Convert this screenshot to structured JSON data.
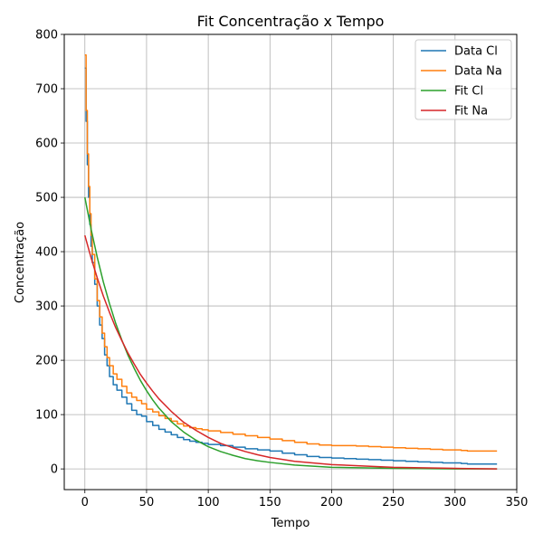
{
  "chart_data": {
    "type": "line",
    "title": "Fit Concentração x Tempo",
    "xlabel": "Tempo",
    "ylabel": "Concentração",
    "xlim": [
      -16.7,
      350
    ],
    "ylim": [
      -38.1,
      800
    ],
    "xticks": [
      0,
      50,
      100,
      150,
      200,
      250,
      300,
      350
    ],
    "yticks": [
      0,
      100,
      200,
      300,
      400,
      500,
      600,
      700,
      800
    ],
    "grid": true,
    "legend_position": "top-right",
    "series": [
      {
        "name": "Data Cl",
        "color": "#1f77b4",
        "style": "step",
        "x": [
          0,
          1,
          2,
          3,
          4,
          5,
          6,
          8,
          10,
          12,
          14,
          16,
          18,
          20,
          23,
          26,
          30,
          34,
          38,
          42,
          46,
          50,
          55,
          60,
          65,
          70,
          75,
          80,
          85,
          90,
          95,
          100,
          110,
          120,
          130,
          140,
          150,
          160,
          170,
          180,
          190,
          200,
          210,
          220,
          230,
          240,
          250,
          260,
          270,
          280,
          290,
          300,
          305,
          310,
          320,
          334
        ],
        "y": [
          738,
          640,
          560,
          500,
          450,
          410,
          380,
          340,
          300,
          265,
          240,
          210,
          190,
          170,
          155,
          145,
          132,
          120,
          108,
          100,
          97,
          87,
          80,
          73,
          68,
          63,
          58,
          54,
          51,
          49,
          47,
          45,
          43,
          40,
          37,
          35,
          33,
          29,
          26,
          23,
          21,
          20,
          19,
          18,
          17,
          16,
          15,
          14,
          13,
          12,
          11,
          11,
          10,
          9,
          9,
          9
        ]
      },
      {
        "name": "Data Na",
        "color": "#ff7f0e",
        "style": "step",
        "x": [
          0,
          1,
          2,
          3,
          4,
          5,
          6,
          8,
          10,
          12,
          14,
          16,
          18,
          20,
          23,
          26,
          30,
          34,
          38,
          42,
          46,
          50,
          55,
          60,
          65,
          70,
          75,
          80,
          85,
          90,
          95,
          100,
          110,
          120,
          130,
          140,
          150,
          160,
          170,
          180,
          190,
          200,
          210,
          220,
          230,
          240,
          250,
          260,
          270,
          280,
          290,
          300,
          305,
          310,
          320,
          334
        ],
        "y": [
          762,
          660,
          580,
          520,
          470,
          430,
          395,
          350,
          310,
          280,
          250,
          225,
          205,
          190,
          175,
          165,
          152,
          140,
          132,
          126,
          120,
          110,
          105,
          98,
          93,
          88,
          83,
          79,
          76,
          74,
          72,
          70,
          67,
          64,
          61,
          58,
          55,
          52,
          49,
          46,
          44,
          43,
          43,
          42,
          41,
          40,
          39,
          38,
          37,
          36,
          35,
          35,
          34,
          33,
          33,
          33
        ]
      },
      {
        "name": "Fit Cl",
        "color": "#2ca02c",
        "style": "line",
        "x": [
          0,
          5,
          10,
          15,
          20,
          25,
          30,
          35,
          40,
          45,
          50,
          55,
          60,
          70,
          80,
          90,
          100,
          110,
          120,
          130,
          140,
          150,
          170,
          200,
          250,
          300,
          334
        ],
        "y": [
          500,
          442,
          390,
          344,
          304,
          268,
          237,
          209,
          185,
          163,
          144,
          127,
          112,
          87,
          68,
          53,
          41,
          32,
          25,
          19,
          15,
          12,
          7,
          3,
          1,
          0,
          0
        ]
      },
      {
        "name": "Fit Na",
        "color": "#d62728",
        "style": "line",
        "x": [
          0,
          5,
          10,
          15,
          20,
          25,
          30,
          35,
          40,
          45,
          50,
          55,
          60,
          70,
          80,
          90,
          100,
          110,
          120,
          130,
          140,
          150,
          170,
          200,
          250,
          300,
          334
        ],
        "y": [
          430,
          389,
          352,
          318,
          288,
          260,
          236,
          213,
          193,
          174,
          158,
          143,
          129,
          106,
          86,
          71,
          58,
          47,
          39,
          32,
          26,
          21,
          14,
          8,
          3,
          1,
          0
        ]
      }
    ]
  }
}
